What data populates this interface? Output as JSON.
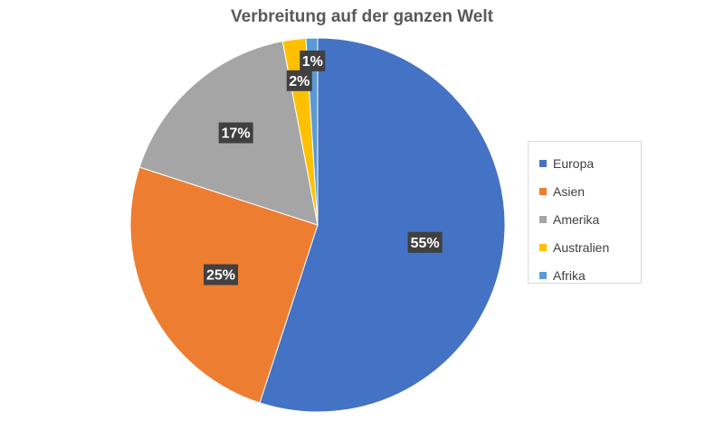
{
  "chart_data": {
    "type": "pie",
    "title": "Verbreitung auf der ganzen Welt",
    "categories": [
      "Europa",
      "Asien",
      "Amerika",
      "Australien",
      "Afrika"
    ],
    "values": [
      55,
      25,
      17,
      2,
      1
    ],
    "labels": [
      "55%",
      "25%",
      "17%",
      "2%",
      "1%"
    ],
    "colors": [
      "#4472C4",
      "#ED7D31",
      "#A5A5A5",
      "#FFC000",
      "#5B9BD5"
    ],
    "start_angle_deg": 0,
    "direction": "clockwise",
    "legend_position": "right"
  }
}
